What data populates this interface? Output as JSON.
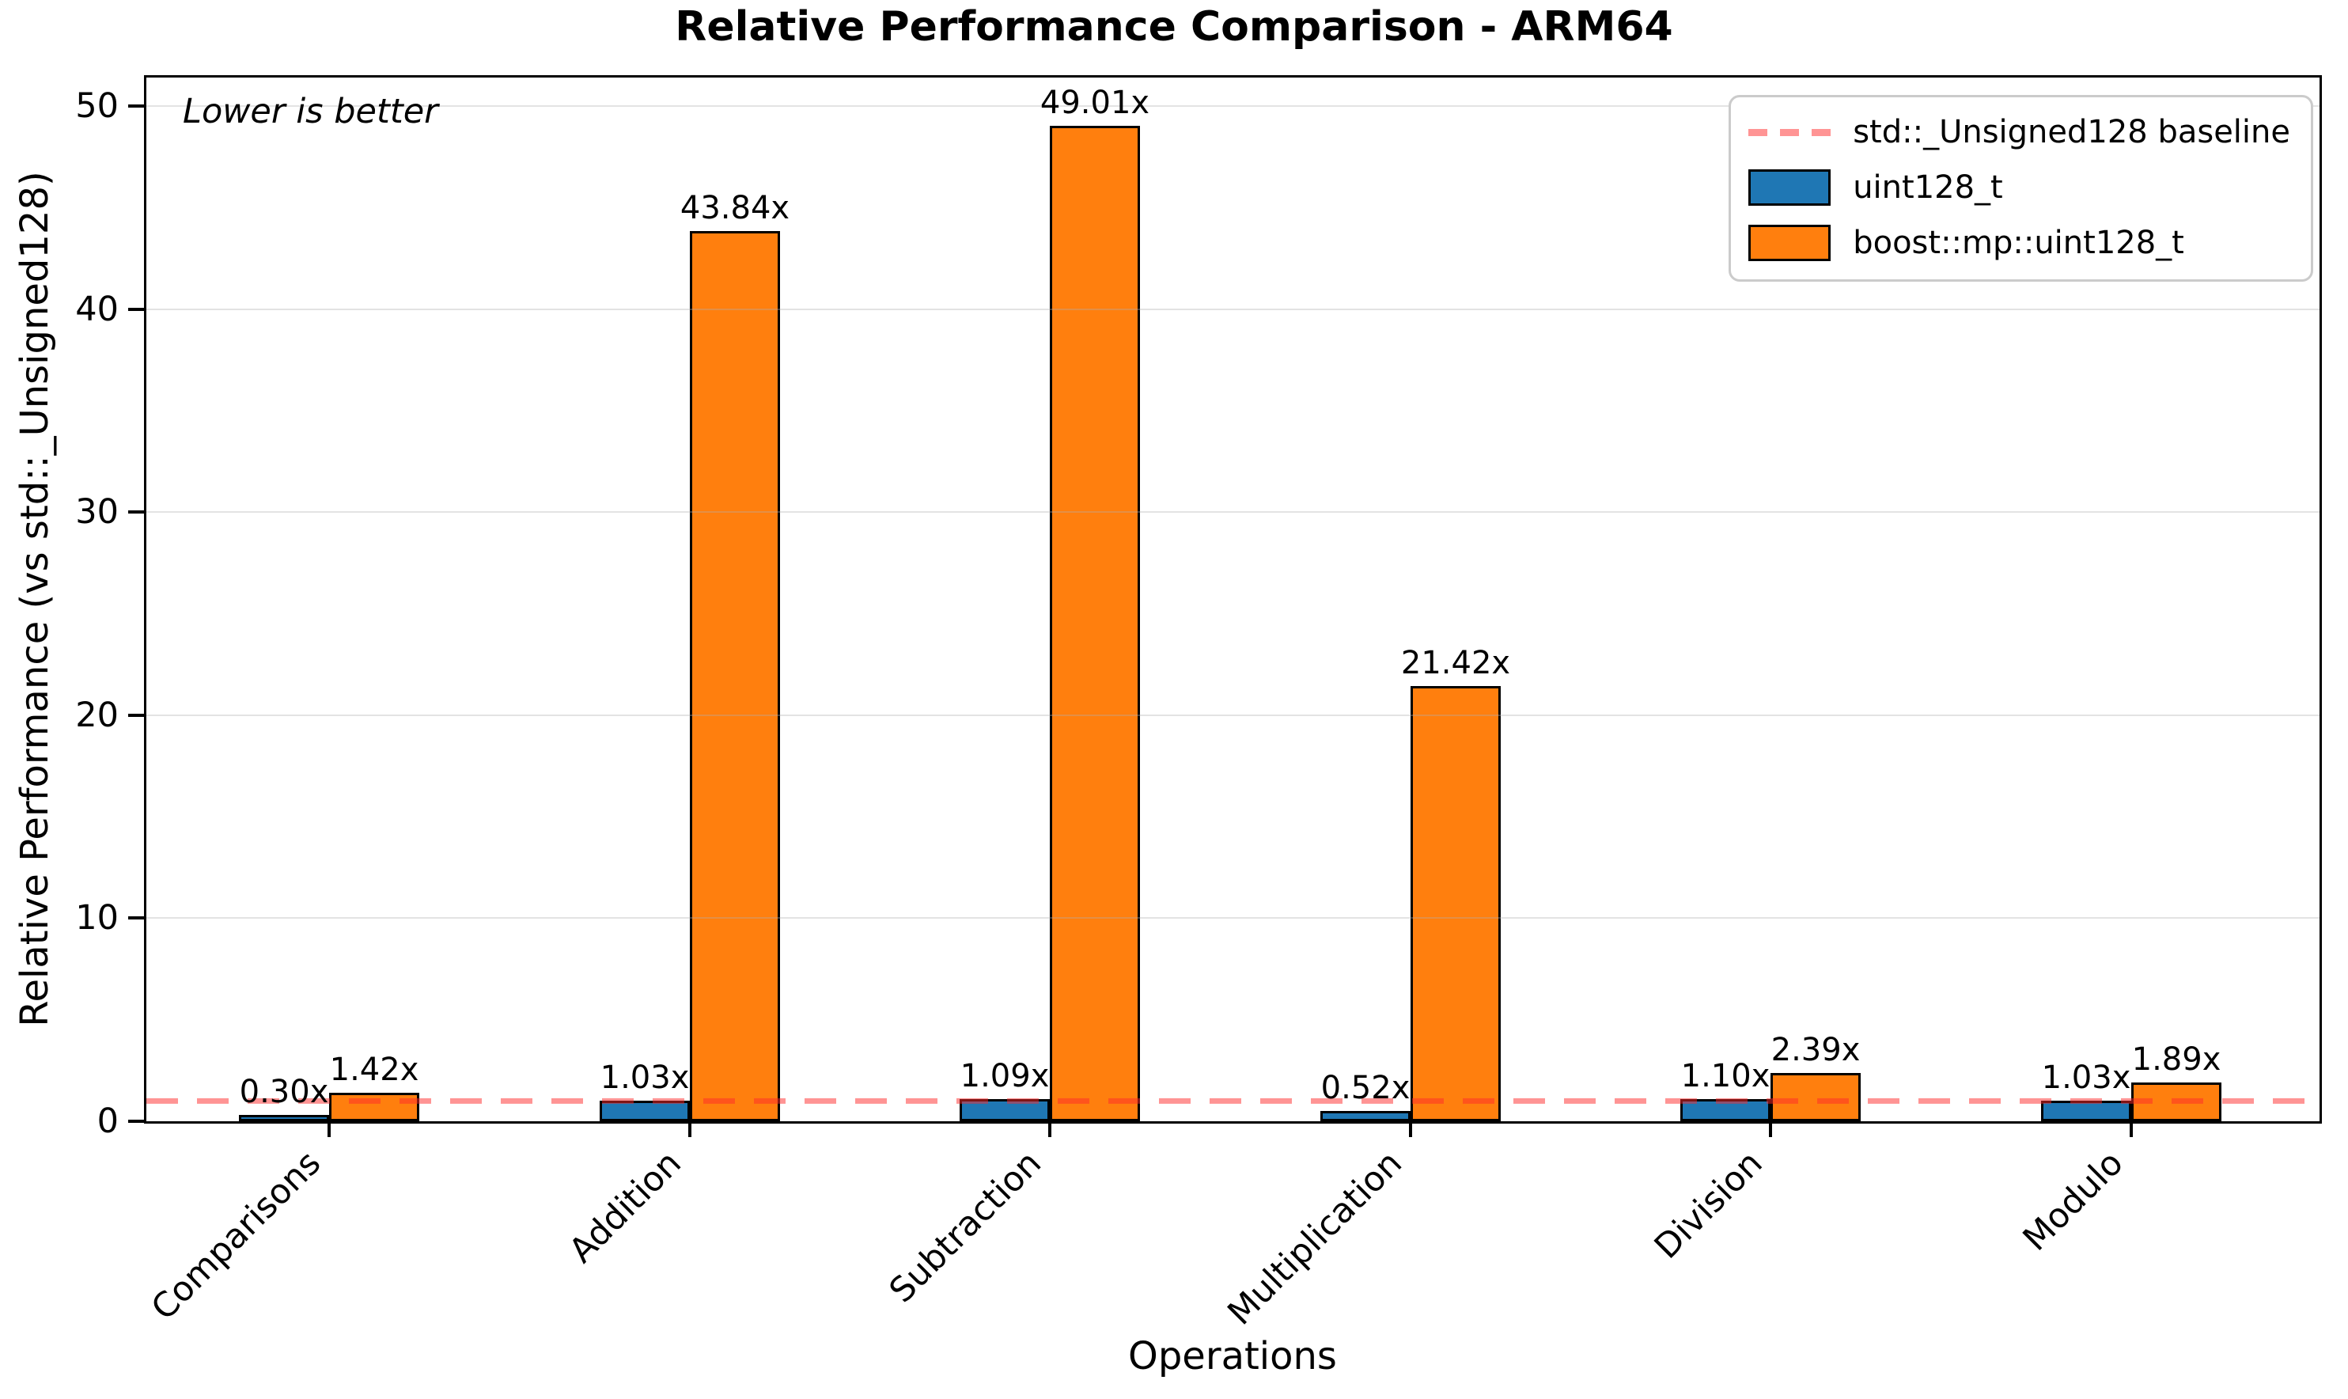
{
  "chart_data": {
    "type": "bar",
    "title": "Relative Performance Comparison - ARM64",
    "xlabel": "Operations",
    "ylabel": "Relative Performance (vs std::_Unsigned128)",
    "annotation": "Lower is better",
    "categories": [
      "Comparisons",
      "Addition",
      "Subtraction",
      "Multiplication",
      "Division",
      "Modulo"
    ],
    "series": [
      {
        "name": "uint128_t",
        "color": "#1f77b4",
        "values": [
          0.3,
          1.03,
          1.09,
          0.52,
          1.1,
          1.03
        ],
        "value_labels": [
          "0.30x",
          "1.03x",
          "1.09x",
          "0.52x",
          "1.10x",
          "1.03x"
        ]
      },
      {
        "name": "boost::mp::uint128_t",
        "color": "#ff7f0e",
        "values": [
          1.42,
          43.84,
          49.01,
          21.42,
          2.39,
          1.89
        ],
        "value_labels": [
          "1.42x",
          "43.84x",
          "49.01x",
          "21.42x",
          "2.39x",
          "1.89x"
        ]
      }
    ],
    "baseline": {
      "value": 1,
      "label": "std::_Unsigned128 baseline",
      "color": "rgba(255,42,42,0.5)"
    },
    "yticks": [
      0,
      10,
      20,
      30,
      40,
      50
    ],
    "ylim": [
      0,
      51.4
    ],
    "grid": true,
    "legend_position": "upper right",
    "bar_edge_color": "#000000",
    "grid_color": "rgba(176,176,176,0.35)"
  }
}
